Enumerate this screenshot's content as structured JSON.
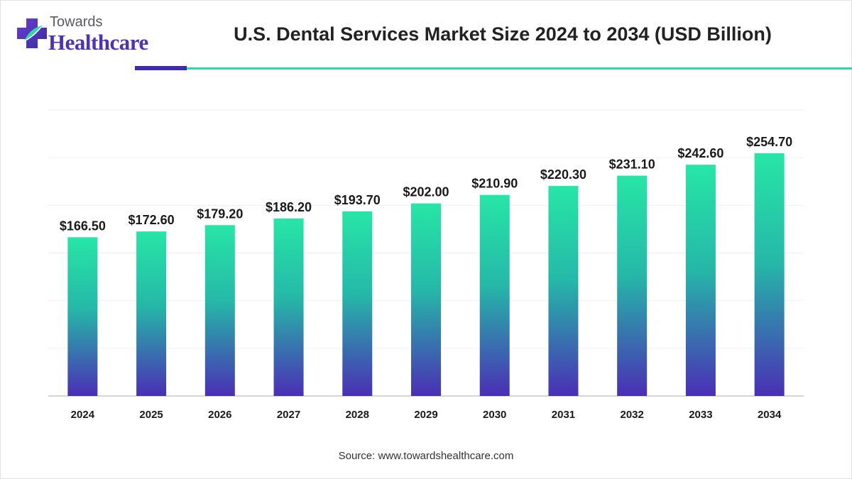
{
  "brand": {
    "small": "Towards",
    "big": "Healthcare"
  },
  "header": {
    "title": "U.S. Dental Services Market Size 2024 to 2034 (USD Billion)"
  },
  "footer": {
    "source": "Source: www.towardshealthcare.com"
  },
  "colors": {
    "bar_top": "#27e6a6",
    "bar_bottom": "#4a2fb5",
    "brand_purple": "#4a33b8",
    "accent_teal": "#2fd6a8"
  },
  "chart_data": {
    "type": "bar",
    "categories": [
      "2024",
      "2025",
      "2026",
      "2027",
      "2028",
      "2029",
      "2030",
      "2031",
      "2032",
      "2033",
      "2034"
    ],
    "values": [
      166.5,
      172.6,
      179.2,
      186.2,
      193.7,
      202.0,
      210.9,
      220.3,
      231.1,
      242.6,
      254.7
    ],
    "data_labels": [
      "$166.50",
      "$172.60",
      "$179.20",
      "$186.20",
      "$193.70",
      "$202.00",
      "$210.90",
      "$220.30",
      "$231.10",
      "$242.60",
      "$254.70"
    ],
    "title": "U.S. Dental Services Market Size 2024 to 2034 (USD Billion)",
    "xlabel": "",
    "ylabel": "",
    "ylim": [
      0,
      300
    ],
    "grid": true,
    "legend": "none"
  }
}
